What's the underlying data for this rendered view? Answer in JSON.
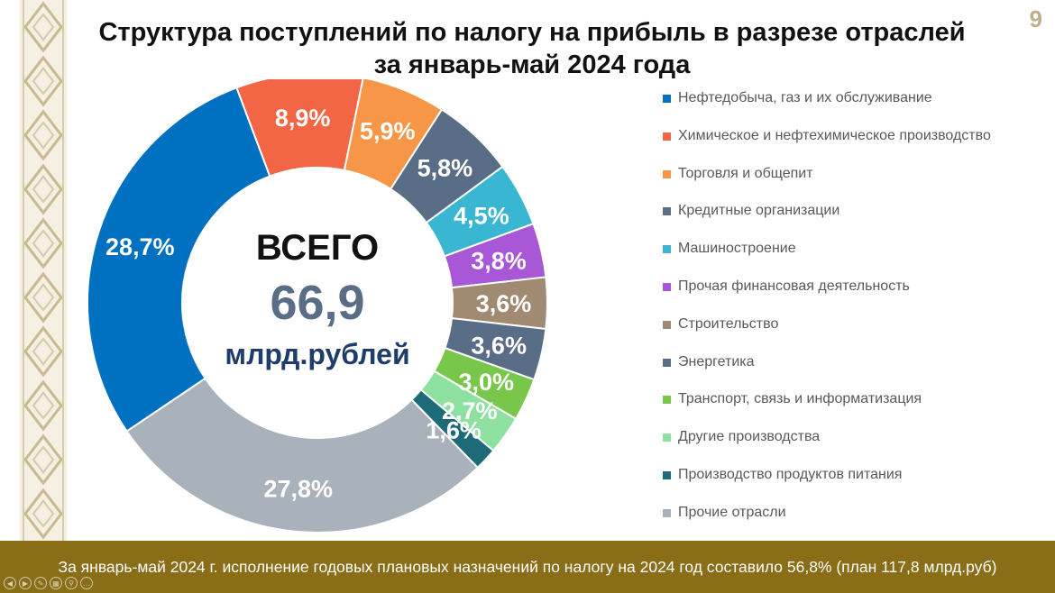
{
  "page_number": "9",
  "title_line1": "Структура поступлений по налогу на прибыль в разрезе отраслей",
  "title_line2": "за январь-май 2024 года",
  "center": {
    "label": "ВСЕГО",
    "value": "66,9",
    "unit": "млрд.рублей"
  },
  "footer": "За январь-май 2024 г. исполнение годовых плановых назначений по налогу на 2024 год составило 56,8% (план 117,8 млрд.руб)",
  "chart_data": {
    "type": "pie",
    "variant": "donut",
    "legend_position": "right",
    "slices": [
      {
        "name": "Нефтедобыча, газ и их обслуживание",
        "value": 28.7,
        "label": "28,7%",
        "color": "#0070c0"
      },
      {
        "name": "Химическое и нефтехимическое производство",
        "value": 8.9,
        "label": "8,9%",
        "color": "#f26645"
      },
      {
        "name": "Торговля и общепит",
        "value": 5.9,
        "label": "5,9%",
        "color": "#f79646"
      },
      {
        "name": "Кредитные организации",
        "value": 5.8,
        "label": "5,8%",
        "color": "#5a6d86"
      },
      {
        "name": "Машиностроение",
        "value": 4.5,
        "label": "4,5%",
        "color": "#38b6d2"
      },
      {
        "name": "Прочая финансовая деятельность",
        "value": 3.8,
        "label": "3,8%",
        "color": "#a857d6"
      },
      {
        "name": "Строительство",
        "value": 3.6,
        "label": "3,6%",
        "color": "#a08a72"
      },
      {
        "name": "Энергетика",
        "value": 3.6,
        "label": "3,6%",
        "color": "#5a6d86"
      },
      {
        "name": "Транспорт, связь и информатизация",
        "value": 3.0,
        "label": "3,0%",
        "color": "#78c74a"
      },
      {
        "name": "Другие производства",
        "value": 2.7,
        "label": "2,7%",
        "color": "#8de0a0"
      },
      {
        "name": "Производство продуктов питания",
        "value": 1.6,
        "label": "1,6%",
        "color": "#1d6a78"
      },
      {
        "name": "Прочие отрасли",
        "value": 27.8,
        "label": "27,8%",
        "color": "#a9b1bb"
      }
    ]
  }
}
